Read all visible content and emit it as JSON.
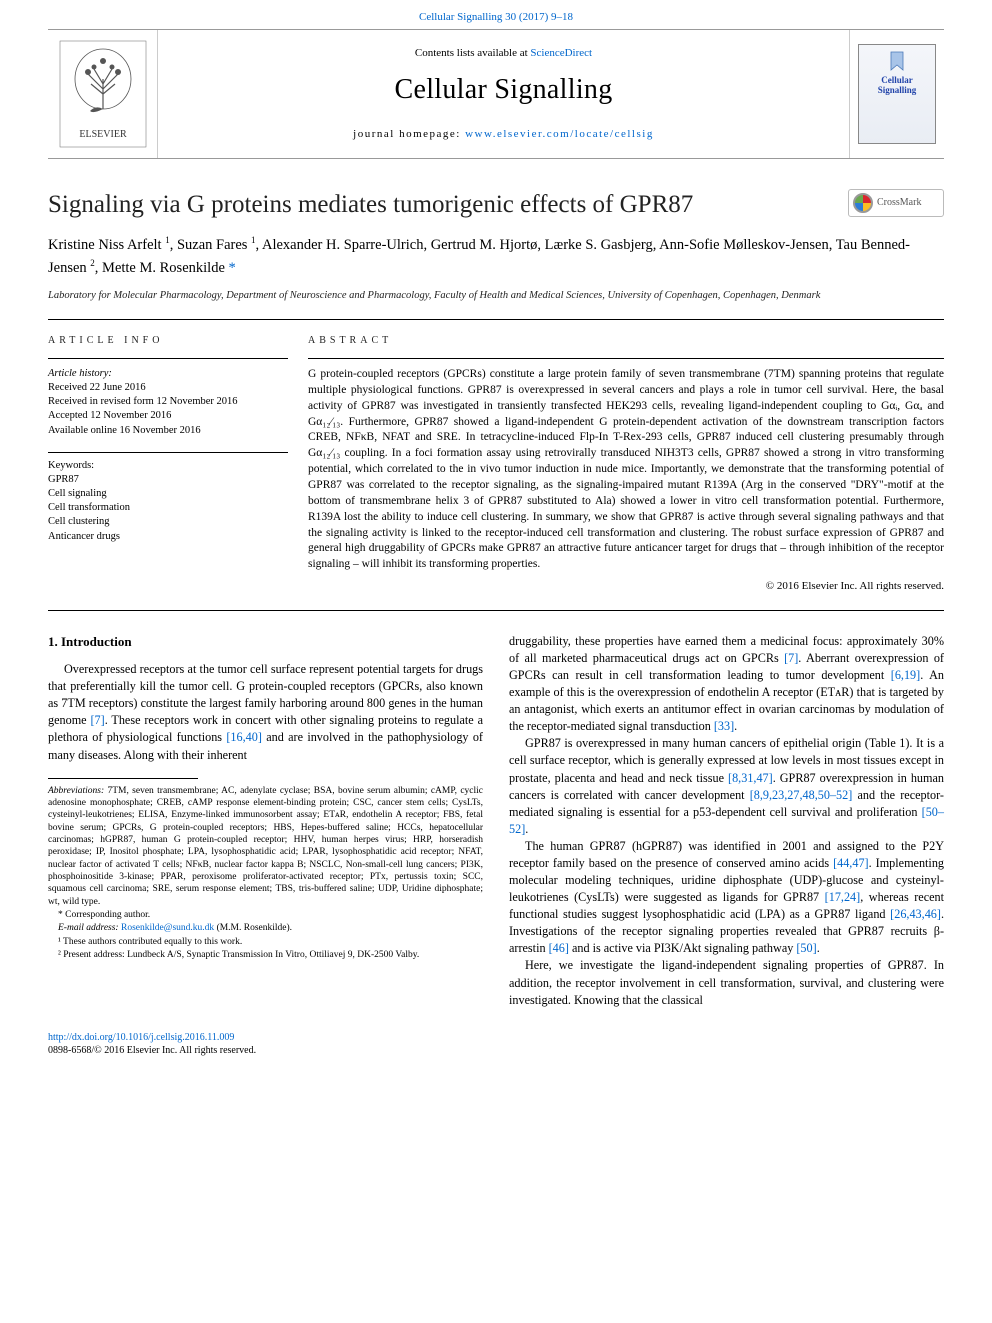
{
  "colors": {
    "link": "#0066cc",
    "text": "#000000",
    "background": "#ffffff",
    "rule": "#000000",
    "muted_rule": "#999999"
  },
  "typography": {
    "base_family": "Times New Roman, Georgia, serif",
    "journal_name_size_pt": 21,
    "article_title_size_pt": 19,
    "authors_size_pt": 11,
    "body_size_pt": 9,
    "abstract_size_pt": 8.5,
    "footnote_size_pt": 7
  },
  "top_citation": "Cellular Signalling 30 (2017) 9–18",
  "header": {
    "contents_prefix": "Contents lists available at ",
    "contents_link": "ScienceDirect",
    "journal_name": "Cellular Signalling",
    "homepage_prefix": "journal homepage: ",
    "homepage_url": "www.elsevier.com/locate/cellsig",
    "publisher": "ELSEVIER",
    "cover_title": "Cellular Signalling"
  },
  "crossmark_label": "CrossMark",
  "article": {
    "title": "Signaling via G proteins mediates tumorigenic effects of GPR87",
    "authors_html": "Kristine Niss Arfelt <sup>1</sup>, Suzan Fares <sup>1</sup>, Alexander H. Sparre-Ulrich, Gertrud M. Hjortø, Lærke S. Gasbjerg, Ann-Sofie Mølleskov-Jensen, Tau Benned-Jensen <sup>2</sup>, Mette M. Rosenkilde <span class='star'>*</span>",
    "affiliation": "Laboratory for Molecular Pharmacology, Department of Neuroscience and Pharmacology, Faculty of Health and Medical Sciences, University of Copenhagen, Copenhagen, Denmark"
  },
  "article_info": {
    "label": "ARTICLE INFO",
    "history_label": "Article history:",
    "history": [
      "Received 22 June 2016",
      "Received in revised form 12 November 2016",
      "Accepted 12 November 2016",
      "Available online 16 November 2016"
    ],
    "keywords_label": "Keywords:",
    "keywords": [
      "GPR87",
      "Cell signaling",
      "Cell transformation",
      "Cell clustering",
      "Anticancer drugs"
    ]
  },
  "abstract": {
    "label": "ABSTRACT",
    "text": "G protein-coupled receptors (GPCRs) constitute a large protein family of seven transmembrane (7TM) spanning proteins that regulate multiple physiological functions. GPR87 is overexpressed in several cancers and plays a role in tumor cell survival. Here, the basal activity of GPR87 was investigated in transiently transfected HEK293 cells, revealing ligand-independent coupling to Gαᵢ, Gαₐ and Gα₁₂⁄₁₃. Furthermore, GPR87 showed a ligand-independent G protein-dependent activation of the downstream transcription factors CREB, NFκB, NFAT and SRE. In tetracycline-induced Flp-In T-Rex-293 cells, GPR87 induced cell clustering presumably through Gα₁₂⁄₁₃ coupling. In a foci formation assay using retrovirally transduced NIH3T3 cells, GPR87 showed a strong in vitro transforming potential, which correlated to the in vivo tumor induction in nude mice. Importantly, we demonstrate that the transforming potential of GPR87 was correlated to the receptor signaling, as the signaling-impaired mutant R139A (Arg in the conserved \"DRY\"-motif at the bottom of transmembrane helix 3 of GPR87 substituted to Ala) showed a lower in vitro cell transformation potential. Furthermore, R139A lost the ability to induce cell clustering. In summary, we show that GPR87 is active through several signaling pathways and that the signaling activity is linked to the receptor-induced cell transformation and clustering. The robust surface expression of GPR87 and general high druggability of GPCRs make GPR87 an attractive future anticancer target for drugs that – through inhibition of the receptor signaling – will inhibit its transforming properties.",
    "copyright": "© 2016 Elsevier Inc. All rights reserved."
  },
  "intro": {
    "heading": "1. Introduction",
    "p1": "Overexpressed receptors at the tumor cell surface represent potential targets for drugs that preferentially kill the tumor cell. G protein-coupled receptors (GPCRs, also known as 7TM receptors) constitute the largest family harboring around 800 genes in the human genome ",
    "p1_ref": "[7]",
    "p1_cont": ". These receptors work in concert with other signaling proteins to regulate a plethora of physiological functions ",
    "p1_ref2": "[16,40]",
    "p1_tail": " and are involved in the pathophysiology of many diseases. Along with their inherent",
    "right_p1a": "druggability, these properties have earned them a medicinal focus: approximately 30% of all marketed pharmaceutical drugs act on GPCRs ",
    "right_p1a_ref": "[7]",
    "right_p1b": ". Aberrant overexpression of GPCRs can result in cell transformation leading to tumor development ",
    "right_p1b_ref": "[6,19]",
    "right_p1c": ". An example of this is the overexpression of endothelin A receptor (ETᴀR) that is targeted by an antagonist, which exerts an antitumor effect in ovarian carcinomas by modulation of the receptor-mediated signal transduction ",
    "right_p1c_ref": "[33]",
    "right_p1c_tail": ".",
    "right_p2": "GPR87 is overexpressed in many human cancers of epithelial origin (Table 1). It is a cell surface receptor, which is generally expressed at low levels in most tissues except in prostate, placenta and head and neck tissue ",
    "right_p2_ref": "[8,31,47]",
    "right_p2b": ". GPR87 overexpression in human cancers is correlated with cancer development ",
    "right_p2b_ref": "[8,9,23,27,48,50–52]",
    "right_p2c": " and the receptor-mediated signaling is essential for a p53-dependent cell survival and proliferation ",
    "right_p2c_ref": "[50–52]",
    "right_p2c_tail": ".",
    "right_p3": "The human GPR87 (hGPR87) was identified in 2001 and assigned to the P2Y receptor family based on the presence of conserved amino acids ",
    "right_p3_ref": "[44,47]",
    "right_p3b": ". Implementing molecular modeling techniques, uridine diphosphate (UDP)-glucose and cysteinyl-leukotrienes (CysLTs) were suggested as ligands for GPR87 ",
    "right_p3b_ref": "[17,24]",
    "right_p3c": ", whereas recent functional studies suggest lysophosphatidic acid (LPA) as a GPR87 ligand ",
    "right_p3c_ref": "[26,43,46]",
    "right_p3d": ". Investigations of the receptor signaling properties revealed that GPR87 recruits β-arrestin ",
    "right_p3d_ref": "[46]",
    "right_p3e": " and is active via PI3K/Akt signaling pathway ",
    "right_p3e_ref": "[50]",
    "right_p3e_tail": ".",
    "right_p4": "Here, we investigate the ligand-independent signaling properties of GPR87. In addition, the receptor involvement in cell transformation, survival, and clustering were investigated. Knowing that the classical"
  },
  "footnotes": {
    "abbrev_label": "Abbreviations:",
    "abbrev_text": " 7TM, seven transmembrane; AC, adenylate cyclase; BSA, bovine serum albumin; cAMP, cyclic adenosine monophosphate; CREB, cAMP response element-binding protein; CSC, cancer stem cells; CysLTs, cysteinyl-leukotrienes; ELISA, Enzyme-linked immunosorbent assay; ETᴀR, endothelin A receptor; FBS, fetal bovine serum; GPCRs, G protein-coupled receptors; HBS, Hepes-buffered saline; HCCs, hepatocellular carcinomas; hGPR87, human G protein-coupled receptor; HHV, human herpes virus; HRP, horseradish peroxidase; IP, Inositol phosphate; LPA, lysophosphatidic acid; LPAR, lysophosphatidic acid receptor; NFAT, nuclear factor of activated T cells; NFκB, nuclear factor kappa B; NSCLC, Non-small-cell lung cancers; PI3K, phosphoinositide 3-kinase; PPAR, peroxisome proliferator-activated receptor; PTx, pertussis toxin; SCC, squamous cell carcinoma; SRE, serum response element; TBS, tris-buffered saline; UDP, Uridine diphosphate; wt, wild type.",
    "corr": "* Corresponding author.",
    "email_label": "E-mail address: ",
    "email": "Rosenkilde@sund.ku.dk",
    "email_tail": " (M.M. Rosenkilde).",
    "note1": "¹ These authors contributed equally to this work.",
    "note2": "² Present address: Lundbeck A/S, Synaptic Transmission In Vitro, Ottiliavej 9, DK-2500 Valby."
  },
  "footer": {
    "doi": "http://dx.doi.org/10.1016/j.cellsig.2016.11.009",
    "issn_line": "0898-6568/© 2016 Elsevier Inc. All rights reserved."
  }
}
